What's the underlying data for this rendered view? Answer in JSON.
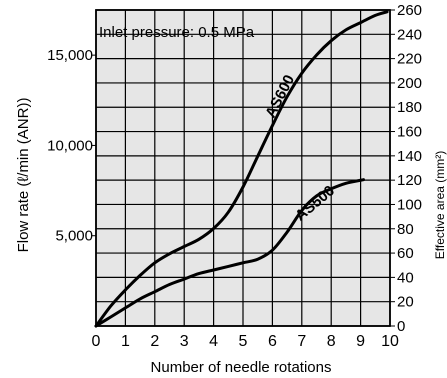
{
  "chart_data": {
    "type": "line",
    "annotation": "Inlet pressure: 0.5 MPa",
    "xlabel": "Number of needle rotations",
    "ylabel": "Flow rate (ℓ/min (ANR))",
    "ylabel_right": "Effective area (mm²)",
    "x_ticks": [
      "0",
      "1",
      "2",
      "3",
      "4",
      "5",
      "6",
      "7",
      "8",
      "9",
      "10"
    ],
    "xlim": [
      0,
      10
    ],
    "ylim": [
      0,
      17500
    ],
    "y_ticks": [
      {
        "value": 5000,
        "label": "5,000"
      },
      {
        "value": 10000,
        "label": "10,000"
      },
      {
        "value": 15000,
        "label": "15,000"
      }
    ],
    "ylim_right": [
      0,
      260
    ],
    "y_right_ticks": [
      "0",
      "20",
      "40",
      "60",
      "80",
      "100",
      "120",
      "140",
      "160",
      "180",
      "200",
      "220",
      "240",
      "260"
    ],
    "grid": true,
    "plot_background": "#e6e6e6",
    "line_color": "#000000",
    "series": [
      {
        "name": "AS600",
        "x": [
          0,
          0.5,
          1,
          1.5,
          2,
          2.5,
          3,
          3.5,
          4,
          4.5,
          5,
          5.5,
          6,
          6.5,
          7,
          7.5,
          8,
          8.5,
          9,
          9.5,
          9.9
        ],
        "y": [
          0,
          1100,
          2000,
          2800,
          3500,
          4000,
          4400,
          4800,
          5400,
          6300,
          7700,
          9400,
          11100,
          12700,
          14000,
          15000,
          15800,
          16400,
          16800,
          17200,
          17400
        ]
      },
      {
        "name": "AS500",
        "x": [
          0,
          0.5,
          1,
          1.5,
          2,
          2.5,
          3,
          3.5,
          4,
          4.5,
          5,
          5.5,
          6,
          6.5,
          7,
          7.5,
          8,
          8.5,
          9.1
        ],
        "y": [
          0,
          500,
          1000,
          1500,
          1900,
          2300,
          2600,
          2900,
          3100,
          3300,
          3500,
          3700,
          4200,
          5200,
          6400,
          7200,
          7600,
          7900,
          8100
        ]
      }
    ]
  }
}
